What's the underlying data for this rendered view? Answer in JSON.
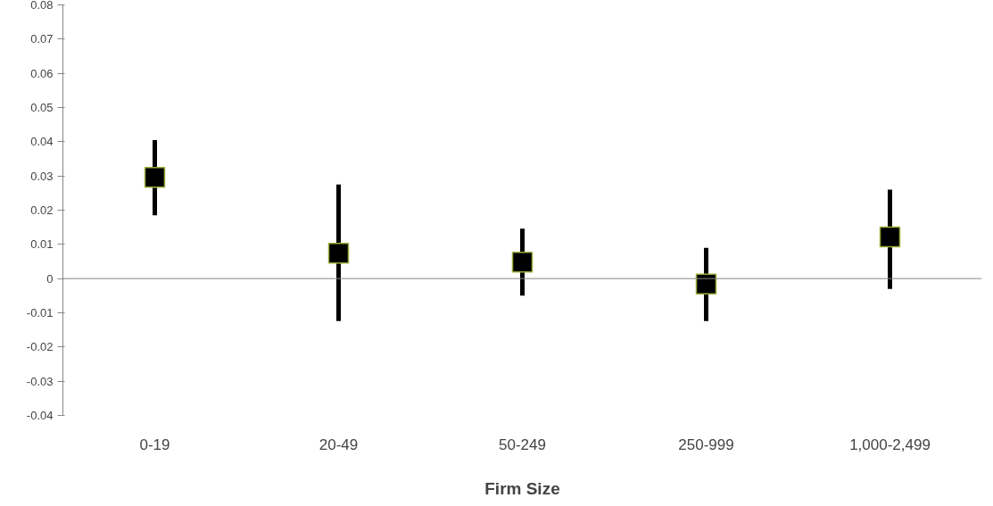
{
  "chart_data": {
    "type": "scatter",
    "xlabel": "Firm Size",
    "categories": [
      "0-19",
      "20-49",
      "50-249",
      "250-999",
      "1,000-2,499"
    ],
    "values": [
      0.0296,
      0.0074,
      0.0048,
      -0.0016,
      0.0122
    ],
    "errors": [
      [
        0.0185,
        0.0405
      ],
      [
        -0.0124,
        0.0275
      ],
      [
        -0.005,
        0.0146
      ],
      [
        -0.0124,
        0.009
      ],
      [
        -0.003,
        0.026
      ]
    ],
    "color": "#000000",
    "marker": "square",
    "ylim": [
      -0.04,
      0.08
    ],
    "yticks": [
      -0.04,
      -0.03,
      -0.02,
      -0.01,
      0,
      0.01,
      0.02,
      0.03,
      0.04,
      0.05,
      0.06,
      0.07,
      0.08
    ],
    "ref_lines": [
      {
        "axis": "y",
        "value": 0,
        "color": "#888888"
      }
    ],
    "grid": false
  }
}
